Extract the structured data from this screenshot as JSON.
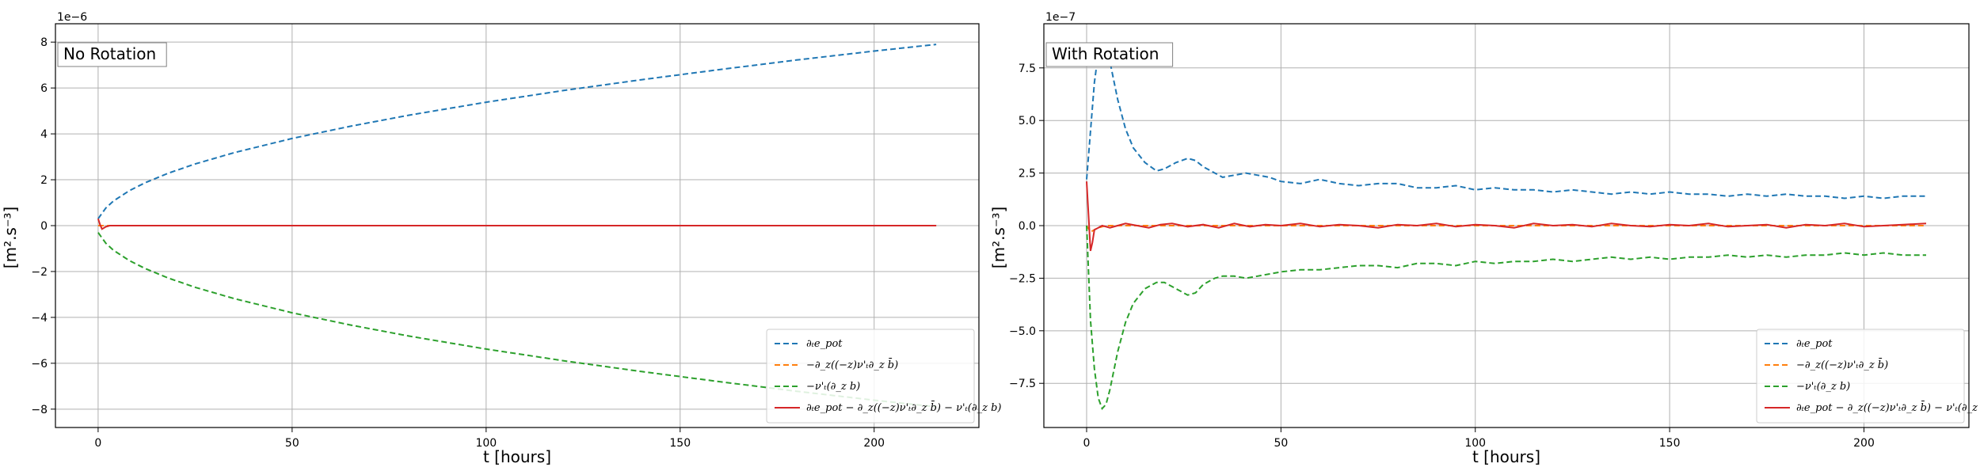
{
  "chart_data": [
    {
      "type": "line",
      "annotation": "No Rotation",
      "xlabel": "t [hours]",
      "ylabel": "[m².s⁻³]",
      "y_offset_label": "1e−6",
      "xlim": [
        -11,
        227
      ],
      "ylim": [
        -8.8,
        8.8
      ],
      "xticks": [
        0,
        50,
        100,
        150,
        200
      ],
      "yticks": [
        -8,
        -6,
        -4,
        -2,
        0,
        2,
        4,
        6,
        8
      ],
      "grid": true,
      "legend_position": "lower-right",
      "series": [
        {
          "name": "∂ₜe_pot",
          "color": "#1f77b4",
          "dash": "dashed",
          "x": [
            0,
            1,
            2,
            4,
            8,
            12,
            18,
            25,
            35,
            50,
            65,
            80,
            100,
            120,
            140,
            160,
            180,
            200,
            216
          ],
          "y": [
            0.3,
            0.54,
            0.77,
            1.08,
            1.52,
            1.86,
            2.28,
            2.69,
            3.18,
            3.8,
            4.33,
            4.81,
            5.38,
            5.89,
            6.36,
            6.8,
            7.22,
            7.61,
            7.9
          ]
        },
        {
          "name": "−∂_z((−z)ν'ₜ∂_z b̄)",
          "color": "#ff7f0e",
          "dash": "dashed",
          "x": [
            0,
            2,
            216
          ],
          "y": [
            0,
            0,
            0
          ]
        },
        {
          "name": "−ν'ₜ(∂_z b)",
          "color": "#2ca02c",
          "dash": "dashed",
          "x": [
            0,
            1,
            2,
            4,
            8,
            12,
            18,
            25,
            35,
            50,
            65,
            80,
            100,
            120,
            140,
            160,
            180,
            200,
            216
          ],
          "y": [
            -0.3,
            -0.54,
            -0.77,
            -1.08,
            -1.52,
            -1.86,
            -2.28,
            -2.69,
            -3.18,
            -3.8,
            -4.33,
            -4.81,
            -5.38,
            -5.89,
            -6.36,
            -6.8,
            -7.22,
            -7.61,
            -7.9
          ]
        },
        {
          "name": "∂ₜe_pot − ∂_z((−z)ν'ₜ∂_z b̄) − ν'ₜ(∂_z b)",
          "color": "#d62728",
          "dash": "solid",
          "x": [
            0,
            0.5,
            1,
            2,
            3,
            5,
            216
          ],
          "y": [
            0.3,
            0.05,
            -0.15,
            -0.05,
            0.0,
            0.0,
            0.0
          ]
        }
      ]
    },
    {
      "type": "line",
      "annotation": "With Rotation",
      "xlabel": "t [hours]",
      "ylabel": "[m².s⁻³]",
      "y_offset_label": "1e−7",
      "xlim": [
        -11,
        227
      ],
      "ylim": [
        -9.6,
        9.6
      ],
      "xticks": [
        0,
        50,
        100,
        150,
        200
      ],
      "yticks": [
        -7.5,
        -5.0,
        -2.5,
        0.0,
        2.5,
        5.0,
        7.5
      ],
      "ytick_labels": [
        "−7.5",
        "−5.0",
        "−2.5",
        "0.0",
        "2.5",
        "5.0",
        "7.5"
      ],
      "grid": true,
      "legend_position": "lower-right",
      "series": [
        {
          "name": "∂ₜe_pot",
          "color": "#1f77b4",
          "dash": "dashed",
          "x": [
            0,
            1,
            2,
            3,
            4,
            5,
            6,
            8,
            10,
            12,
            15,
            18,
            20,
            23,
            26,
            28,
            30,
            33,
            35,
            38,
            41,
            44,
            47,
            50,
            55,
            60,
            65,
            70,
            75,
            80,
            85,
            90,
            95,
            100,
            105,
            110,
            115,
            120,
            125,
            130,
            135,
            140,
            145,
            150,
            155,
            160,
            165,
            170,
            175,
            180,
            185,
            190,
            195,
            200,
            205,
            210,
            216
          ],
          "y": [
            2.2,
            4.5,
            6.8,
            8.2,
            8.6,
            8.4,
            7.8,
            6.0,
            4.6,
            3.7,
            3.0,
            2.6,
            2.7,
            3.0,
            3.2,
            3.1,
            2.8,
            2.5,
            2.3,
            2.4,
            2.5,
            2.4,
            2.3,
            2.1,
            2.0,
            2.2,
            2.0,
            1.9,
            2.0,
            2.0,
            1.8,
            1.8,
            1.9,
            1.7,
            1.8,
            1.7,
            1.7,
            1.6,
            1.7,
            1.6,
            1.5,
            1.6,
            1.5,
            1.6,
            1.5,
            1.5,
            1.4,
            1.5,
            1.4,
            1.5,
            1.4,
            1.4,
            1.3,
            1.4,
            1.3,
            1.4,
            1.4
          ]
        },
        {
          "name": "−∂_z((−z)ν'ₜ∂_z b̄)",
          "color": "#ff7f0e",
          "dash": "dashed",
          "x": [
            0,
            1,
            2,
            3,
            5,
            216
          ],
          "y": [
            0,
            -0.3,
            -0.2,
            -0.1,
            0,
            0
          ]
        },
        {
          "name": "−ν'ₜ(∂_z b)",
          "color": "#2ca02c",
          "dash": "dashed",
          "x": [
            0,
            1,
            2,
            3,
            4,
            5,
            6,
            8,
            10,
            12,
            15,
            18,
            20,
            23,
            26,
            28,
            30,
            33,
            35,
            38,
            41,
            44,
            47,
            50,
            55,
            60,
            65,
            70,
            75,
            80,
            85,
            90,
            95,
            100,
            105,
            110,
            115,
            120,
            125,
            130,
            135,
            140,
            145,
            150,
            155,
            160,
            165,
            170,
            175,
            180,
            185,
            190,
            195,
            200,
            205,
            210,
            216
          ],
          "y": [
            0.0,
            -4.5,
            -6.8,
            -8.2,
            -8.7,
            -8.5,
            -7.8,
            -6.0,
            -4.6,
            -3.7,
            -3.0,
            -2.7,
            -2.7,
            -3.0,
            -3.3,
            -3.2,
            -2.8,
            -2.5,
            -2.4,
            -2.4,
            -2.5,
            -2.4,
            -2.3,
            -2.2,
            -2.1,
            -2.1,
            -2.0,
            -1.9,
            -1.9,
            -2.0,
            -1.8,
            -1.8,
            -1.9,
            -1.7,
            -1.8,
            -1.7,
            -1.7,
            -1.6,
            -1.7,
            -1.6,
            -1.5,
            -1.6,
            -1.5,
            -1.6,
            -1.5,
            -1.5,
            -1.4,
            -1.5,
            -1.4,
            -1.5,
            -1.4,
            -1.4,
            -1.3,
            -1.4,
            -1.3,
            -1.4,
            -1.4
          ]
        },
        {
          "name": "∂ₜe_pot − ∂_z((−z)ν'ₜ∂_z b̄) − ν'ₜ(∂_z b)",
          "color": "#d62728",
          "dash": "solid",
          "x": [
            0,
            0.5,
            1,
            1.5,
            2,
            3,
            4,
            6,
            8,
            10,
            13,
            16,
            19,
            22,
            26,
            30,
            34,
            38,
            42,
            46,
            50,
            55,
            60,
            65,
            70,
            75,
            80,
            85,
            90,
            95,
            100,
            105,
            110,
            115,
            120,
            125,
            130,
            135,
            140,
            145,
            150,
            155,
            160,
            165,
            170,
            175,
            180,
            185,
            190,
            195,
            200,
            205,
            210,
            216
          ],
          "y": [
            2.1,
            0.5,
            -1.2,
            -0.8,
            -0.2,
            -0.1,
            0.0,
            -0.1,
            0.0,
            0.1,
            0.0,
            -0.1,
            0.05,
            0.1,
            -0.05,
            0.05,
            -0.1,
            0.1,
            -0.05,
            0.05,
            0.0,
            0.1,
            -0.05,
            0.05,
            0.0,
            -0.1,
            0.05,
            0.0,
            0.1,
            -0.05,
            0.05,
            0.0,
            -0.1,
            0.1,
            0.0,
            0.05,
            -0.05,
            0.1,
            0.0,
            -0.05,
            0.05,
            0.0,
            0.1,
            -0.05,
            0.0,
            0.05,
            -0.1,
            0.05,
            0.0,
            0.1,
            -0.05,
            0.0,
            0.05,
            0.1
          ]
        }
      ]
    }
  ]
}
